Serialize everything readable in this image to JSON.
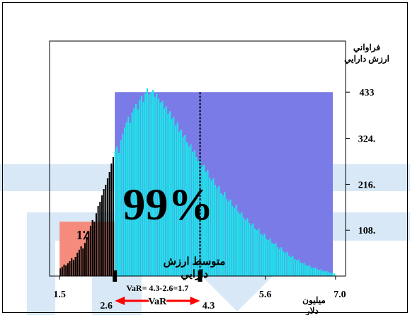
{
  "chart_data": {
    "type": "bar",
    "title": "",
    "ylabel_line1": "فراواني",
    "ylabel_line2": "ارزش دارايي",
    "xlabel_line1": "ميليون",
    "xlabel_line2": "دلار",
    "y_ticks": [
      "108.",
      "216.",
      "324.",
      "433"
    ],
    "y_tick_values": [
      108,
      216,
      324,
      433
    ],
    "ylim": [
      0,
      450
    ],
    "x_ticks_top": [
      "1.5",
      "5.6",
      "7.0"
    ],
    "x_ticks_top_values": [
      1.5,
      5.6,
      7.0
    ],
    "x_ticks_bottom": [
      "2.6",
      "4.3"
    ],
    "x_ticks_bottom_values": [
      2.6,
      4.3
    ],
    "xlim": [
      1.3,
      7.2
    ],
    "var_threshold": 2.6,
    "mean_value": 4.3,
    "tail_label": "1٪",
    "body_label": "99%",
    "mean_label_line1": "متوسط ارزش",
    "mean_label_line2": "دارايي",
    "var_formula": "VaR= 4.3-2.6=1.7",
    "var_arrow_label": "VaR",
    "colors": {
      "tail_background": "#f48b7d",
      "body_background": "#7b7be8",
      "tail_bars": "#000000",
      "body_bars": "#19e8e8",
      "arrow": "#ff0000",
      "watermark": "#d8e8f6"
    },
    "frequencies": [
      18,
      22,
      27,
      25,
      30,
      35,
      42,
      38,
      45,
      55,
      62,
      70,
      65,
      78,
      92,
      105,
      118,
      132,
      128,
      148,
      165,
      175,
      190,
      205,
      215,
      230,
      245,
      265,
      280,
      295,
      305,
      290,
      320,
      335,
      350,
      362,
      375,
      360,
      385,
      395,
      405,
      392,
      415,
      425,
      410,
      430,
      442,
      428,
      433,
      438,
      422,
      430,
      418,
      408,
      412,
      395,
      400,
      382,
      388,
      370,
      375,
      355,
      362,
      340,
      345,
      328,
      332,
      315,
      305,
      310,
      292,
      296,
      280,
      270,
      275,
      258,
      262,
      245,
      250,
      232,
      225,
      230,
      215,
      208,
      212,
      195,
      190,
      198,
      182,
      176,
      180,
      165,
      160,
      168,
      152,
      146,
      150,
      138,
      132,
      136,
      125,
      120,
      124,
      112,
      108,
      112,
      100,
      96,
      100,
      88,
      85,
      88,
      78,
      75,
      78,
      68,
      64,
      68,
      58,
      55,
      57,
      48,
      45,
      47,
      40,
      37,
      39,
      32,
      30,
      31,
      26,
      24,
      25,
      20,
      19,
      20,
      16,
      15,
      16,
      12,
      11,
      12,
      9,
      8,
      7,
      6
    ],
    "bins_x_start": 1.5,
    "bins_x_end": 7.0
  }
}
